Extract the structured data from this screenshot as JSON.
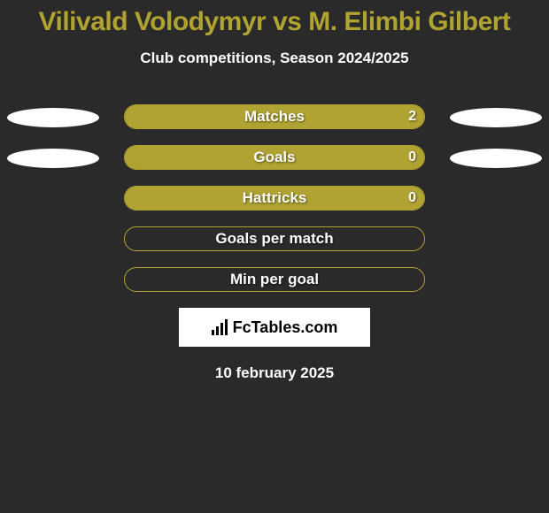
{
  "title": {
    "text": "Vilivald Volodymyr vs M. Elimbi Gilbert",
    "color": "#b0a332",
    "fontsize": 30
  },
  "subtitle": {
    "text": "Club competitions, Season 2024/2025",
    "color": "#ffffff",
    "fontsize": 17
  },
  "bar_style": {
    "fill_color": "#b0a332",
    "border_color": "#b0a332",
    "track_width": 340,
    "label_color": "#ffffff",
    "label_fontsize": 17,
    "value_color": "#ffffff",
    "value_fontsize": 16
  },
  "ellipse_style": {
    "color": "#ffffff"
  },
  "rows": [
    {
      "label": "Matches",
      "value": "2",
      "fill_ratio": 1.0,
      "left_ellipse": true,
      "right_ellipse": true
    },
    {
      "label": "Goals",
      "value": "0",
      "fill_ratio": 1.0,
      "left_ellipse": true,
      "right_ellipse": true
    },
    {
      "label": "Hattricks",
      "value": "0",
      "fill_ratio": 1.0,
      "left_ellipse": false,
      "right_ellipse": false
    },
    {
      "label": "Goals per match",
      "value": "",
      "fill_ratio": 0.0,
      "left_ellipse": false,
      "right_ellipse": false
    },
    {
      "label": "Min per goal",
      "value": "",
      "fill_ratio": 0.0,
      "left_ellipse": false,
      "right_ellipse": false
    }
  ],
  "branding": {
    "text": "FcTables.com",
    "box_bg": "#ffffff",
    "text_color": "#000000",
    "fontsize": 18
  },
  "date": {
    "text": "10 february 2025",
    "color": "#ffffff",
    "fontsize": 17
  },
  "background_color": "#2a2a2a"
}
